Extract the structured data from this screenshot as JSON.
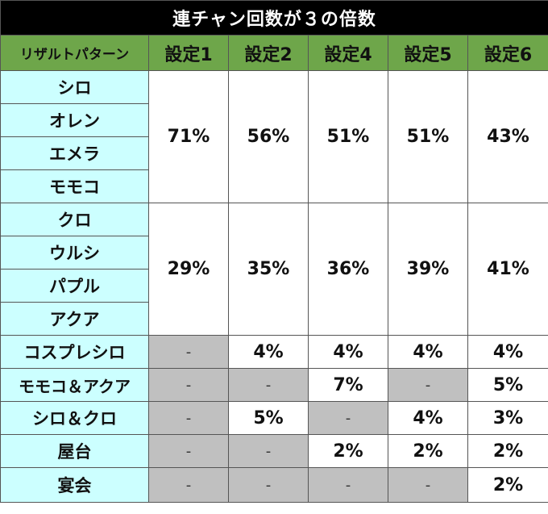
{
  "title": "連チャン回数が３の倍数",
  "header": {
    "pattern_label": "リザルトパターン",
    "settings": [
      "設定1",
      "設定2",
      "設定4",
      "設定5",
      "設定6"
    ]
  },
  "groups": [
    {
      "patterns": [
        "シロ",
        "オレン",
        "エメラ",
        "モモコ"
      ],
      "values": [
        "71%",
        "56%",
        "51%",
        "51%",
        "43%"
      ]
    },
    {
      "patterns": [
        "クロ",
        "ウルシ",
        "パプル",
        "アクア"
      ],
      "values": [
        "29%",
        "35%",
        "36%",
        "39%",
        "41%"
      ]
    }
  ],
  "rows": [
    {
      "label": "コスプレシロ",
      "values": [
        "-",
        "4%",
        "4%",
        "4%",
        "4%"
      ]
    },
    {
      "label": "モモコ＆アクア",
      "values": [
        "-",
        "-",
        "7%",
        "-",
        "5%"
      ]
    },
    {
      "label": "シロ＆クロ",
      "values": [
        "-",
        "5%",
        "-",
        "4%",
        "3%"
      ]
    },
    {
      "label": "屋台",
      "values": [
        "-",
        "-",
        "2%",
        "2%",
        "2%"
      ]
    },
    {
      "label": "宴会",
      "values": [
        "-",
        "-",
        "-",
        "-",
        "2%"
      ]
    }
  ]
}
